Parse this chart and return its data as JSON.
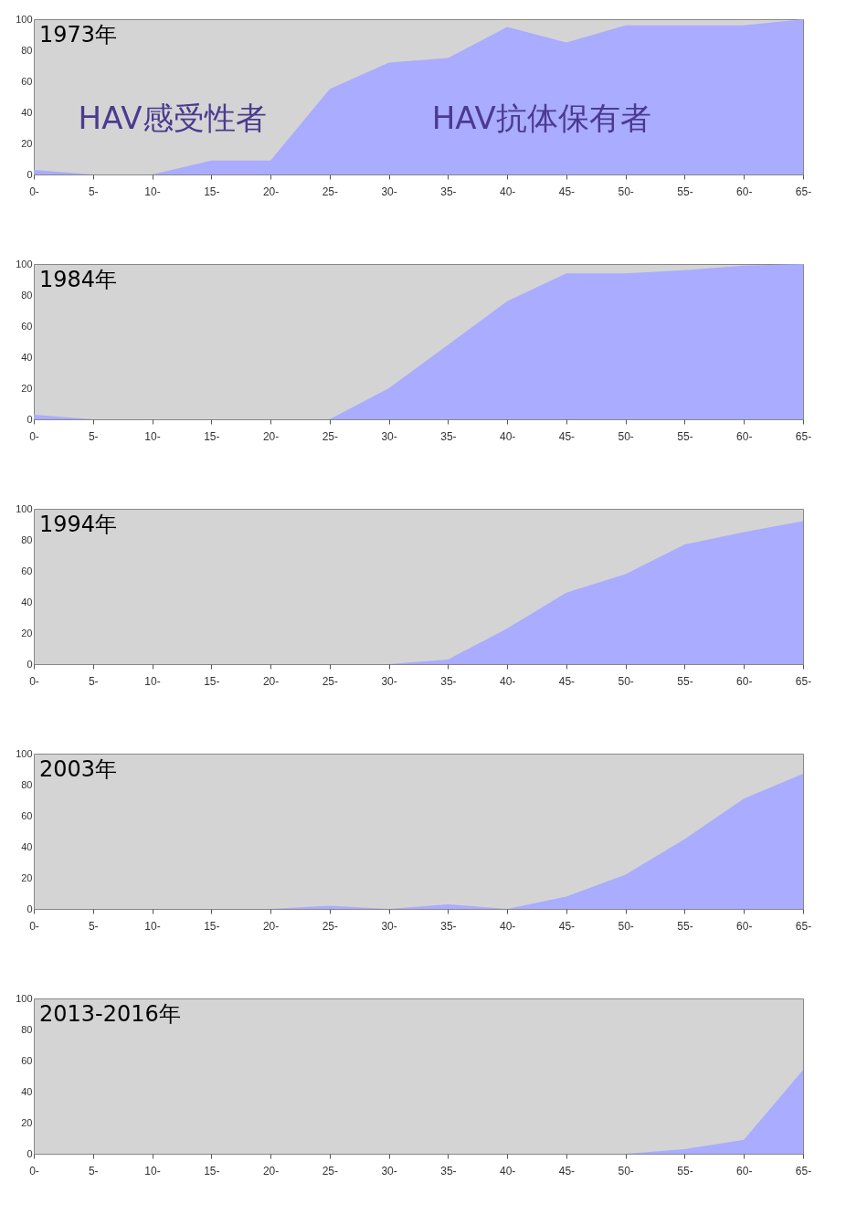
{
  "chart_data": [
    {
      "type": "area",
      "title": "1973年",
      "categories": [
        "0-",
        "5-",
        "10-",
        "15-",
        "20-",
        "25-",
        "30-",
        "35-",
        "40-",
        "45-",
        "50-",
        "55-",
        "60-",
        "65-"
      ],
      "values": [
        3,
        0,
        0,
        9,
        9,
        55,
        72,
        75,
        95,
        85,
        96,
        96,
        96,
        100
      ],
      "color": "#a9acff",
      "ylim": [
        0,
        100
      ],
      "yticks": [
        0,
        20,
        40,
        60,
        80,
        100
      ],
      "annotations": [
        "HAV感受性者",
        "HAV抗体保有者"
      ]
    },
    {
      "type": "area",
      "title": "1984年",
      "categories": [
        "0-",
        "5-",
        "10-",
        "15-",
        "20-",
        "25-",
        "30-",
        "35-",
        "40-",
        "45-",
        "50-",
        "55-",
        "60-",
        "65-"
      ],
      "values": [
        3,
        0,
        0,
        0,
        0,
        0,
        20,
        48,
        76,
        94,
        94,
        96,
        99,
        100
      ],
      "color": "#a9acff",
      "ylim": [
        0,
        100
      ],
      "yticks": [
        0,
        20,
        40,
        60,
        80,
        100
      ]
    },
    {
      "type": "area",
      "title": "1994年",
      "categories": [
        "0-",
        "5-",
        "10-",
        "15-",
        "20-",
        "25-",
        "30-",
        "35-",
        "40-",
        "45-",
        "50-",
        "55-",
        "60-",
        "65-"
      ],
      "values": [
        0,
        0,
        0,
        0,
        0,
        0,
        0,
        3,
        23,
        46,
        58,
        77,
        85,
        92
      ],
      "color": "#a9acff",
      "ylim": [
        0,
        100
      ],
      "yticks": [
        0,
        20,
        40,
        60,
        80,
        100
      ]
    },
    {
      "type": "area",
      "title": "2003年",
      "categories": [
        "0-",
        "5-",
        "10-",
        "15-",
        "20-",
        "25-",
        "30-",
        "35-",
        "40-",
        "45-",
        "50-",
        "55-",
        "60-",
        "65-"
      ],
      "values": [
        0,
        0,
        0,
        0,
        0,
        2,
        0,
        3,
        0,
        8,
        22,
        45,
        71,
        87
      ],
      "color": "#a9acff",
      "ylim": [
        0,
        100
      ],
      "yticks": [
        0,
        20,
        40,
        60,
        80,
        100
      ]
    },
    {
      "type": "area",
      "title": "2013-2016年",
      "categories": [
        "0-",
        "5-",
        "10-",
        "15-",
        "20-",
        "25-",
        "30-",
        "35-",
        "40-",
        "45-",
        "50-",
        "55-",
        "60-",
        "65-"
      ],
      "values": [
        0,
        0,
        0,
        0,
        0,
        0,
        0,
        0,
        0,
        0,
        0,
        3,
        9,
        54
      ],
      "color": "#a9acff",
      "ylim": [
        0,
        100
      ],
      "yticks": [
        0,
        20,
        40,
        60,
        80,
        100
      ]
    }
  ]
}
